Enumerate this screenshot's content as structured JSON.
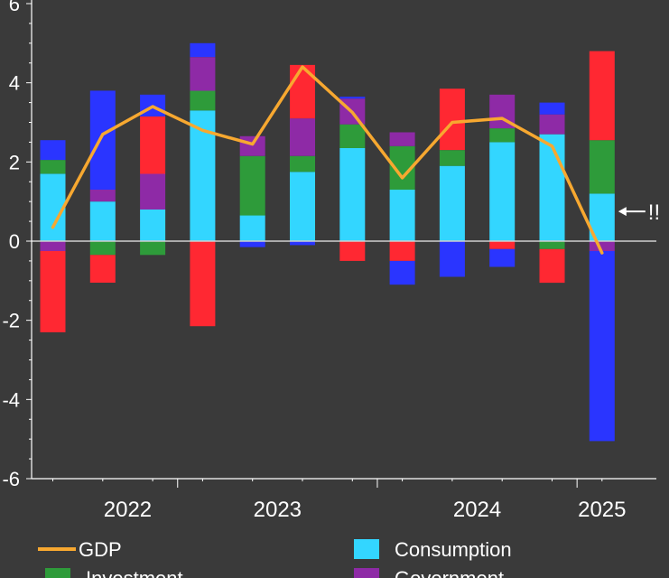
{
  "chart_data": {
    "type": "bar",
    "stacked": true,
    "title": "",
    "xlabel": "",
    "ylabel": "",
    "ylim": [
      -6,
      6
    ],
    "yticks": [
      -6,
      -4,
      -2,
      0,
      2,
      4,
      6
    ],
    "ytick_labels": [
      "-6",
      "-4",
      "-2",
      "0",
      "2",
      "4",
      "6"
    ],
    "year_labels": [
      {
        "label": "2022",
        "quarters": [
          1,
          2
        ]
      },
      {
        "label": "2023",
        "quarters": [
          4,
          5
        ]
      },
      {
        "label": "2024",
        "quarters": [
          8,
          9
        ]
      },
      {
        "label": "2025",
        "quarters": [
          11,
          11
        ]
      }
    ],
    "year_separators": [
      2.5,
      6.5,
      10.5
    ],
    "n_quarters": 12,
    "series": [
      {
        "name": "Consumption",
        "key": "consumption",
        "color": "#33d6ff",
        "values": [
          1.7,
          1.0,
          0.8,
          3.3,
          0.65,
          1.75,
          2.35,
          1.3,
          1.9,
          2.5,
          2.7,
          1.2
        ]
      },
      {
        "name": "Investment",
        "key": "investment",
        "color": "#2e9b3a",
        "values": [
          0.35,
          -0.35,
          -0.35,
          0.5,
          1.5,
          0.4,
          0.6,
          1.1,
          0.4,
          0.35,
          -0.2,
          1.35
        ]
      },
      {
        "name": "Government",
        "key": "government",
        "color": "#8e2aa6",
        "values": [
          -0.25,
          0.3,
          0.9,
          0.85,
          0.5,
          0.95,
          0.65,
          0.35,
          0.0,
          0.85,
          0.5,
          -0.25
        ]
      },
      {
        "name": "",
        "key": "red",
        "color": "#ff2832",
        "values": [
          -2.05,
          -0.7,
          1.45,
          -2.15,
          0.0,
          1.35,
          -0.5,
          -0.5,
          1.55,
          -0.2,
          -0.85,
          2.25
        ]
      },
      {
        "name": "",
        "key": "blue",
        "color": "#2a35ff",
        "values": [
          0.5,
          2.5,
          0.55,
          0.35,
          -0.15,
          -0.1,
          0.05,
          -0.6,
          -0.9,
          -0.45,
          0.3,
          -4.8
        ]
      }
    ],
    "line_series": {
      "name": "GDP",
      "color": "#f7a830",
      "values": [
        0.35,
        2.7,
        3.4,
        2.8,
        2.45,
        4.4,
        3.25,
        1.6,
        3.0,
        3.1,
        2.4,
        -0.3
      ]
    },
    "annotation": {
      "text": "!!",
      "quarter": 11,
      "value": 0.75
    },
    "legend_position": "bottom",
    "grid": false
  }
}
